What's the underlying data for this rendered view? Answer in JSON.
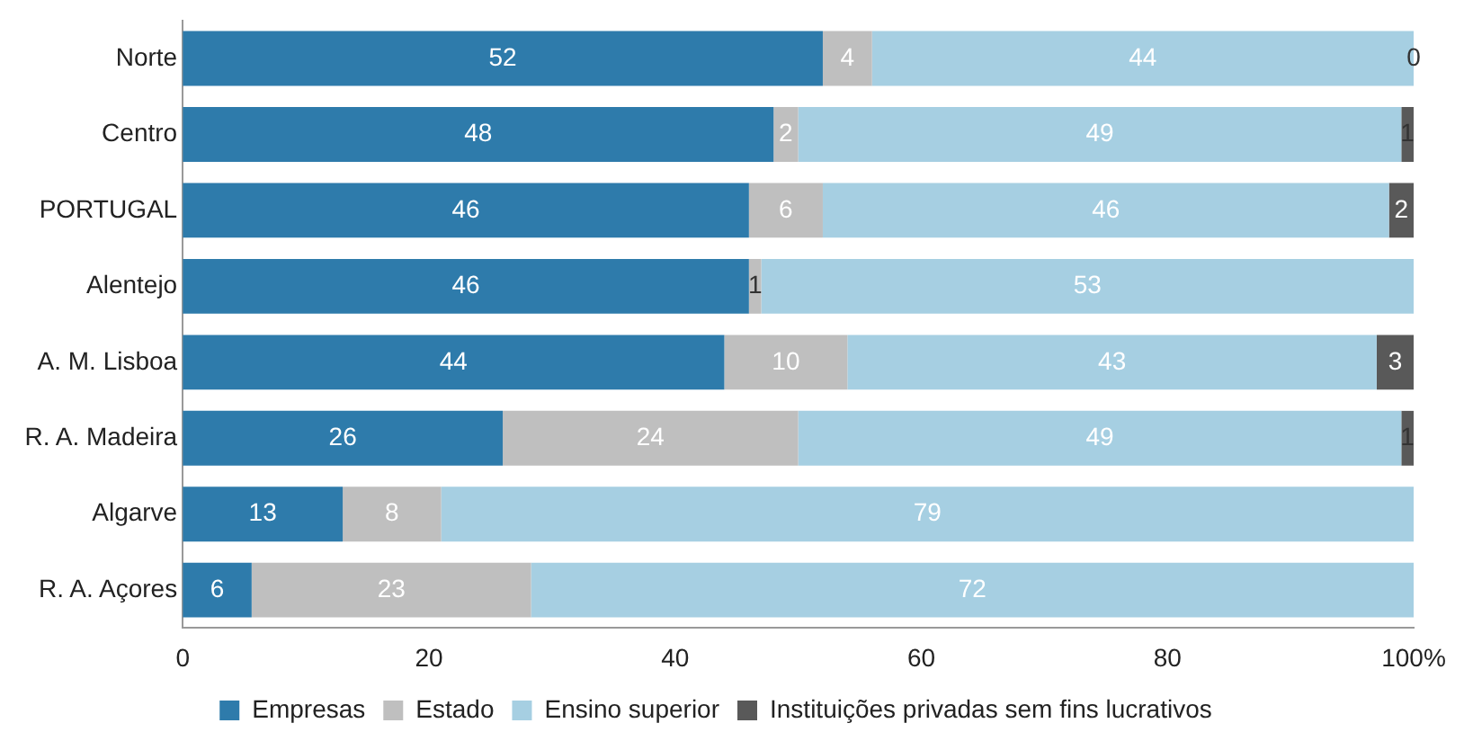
{
  "chart_data": {
    "type": "bar",
    "orientation": "horizontal",
    "stacked": true,
    "legend": "bottom",
    "grid": false,
    "categories": [
      "Norte",
      "Centro",
      "PORTUGAL",
      "Alentejo",
      "A. M. Lisboa",
      "R. A. Madeira",
      "Algarve",
      "R. A. Açores"
    ],
    "xlim": [
      0,
      100
    ],
    "xticks": [
      0,
      20,
      40,
      60,
      80,
      {
        "value": 100,
        "label": "100%"
      }
    ],
    "series": [
      {
        "name": "Empresas",
        "color": "#2e7bab",
        "values": [
          52,
          48,
          46,
          46,
          44,
          26,
          13,
          5.6
        ],
        "value_labels": [
          "52",
          "48",
          "46",
          "46",
          "44",
          "26",
          "13",
          "6"
        ]
      },
      {
        "name": "Estado",
        "color": "#bfbfbf",
        "values": [
          4,
          2,
          6,
          1,
          10,
          24,
          8,
          22.7
        ],
        "value_labels": [
          "4",
          "2",
          "6",
          "1",
          "10",
          "24",
          "8",
          "23"
        ]
      },
      {
        "name": "Ensino superior",
        "color": "#a6cfe2",
        "values": [
          44,
          49,
          46,
          53,
          43,
          49,
          79,
          71.7
        ],
        "value_labels": [
          "44",
          "49",
          "46",
          "53",
          "43",
          "49",
          "79",
          "72"
        ]
      },
      {
        "name": "Instituições privadas sem fins lucrativos",
        "color": "#595959",
        "values": [
          0,
          1,
          2,
          null,
          3,
          1,
          null,
          null
        ],
        "value_labels": [
          "0",
          "1",
          "2",
          null,
          "3",
          "1",
          null,
          null
        ]
      }
    ]
  }
}
